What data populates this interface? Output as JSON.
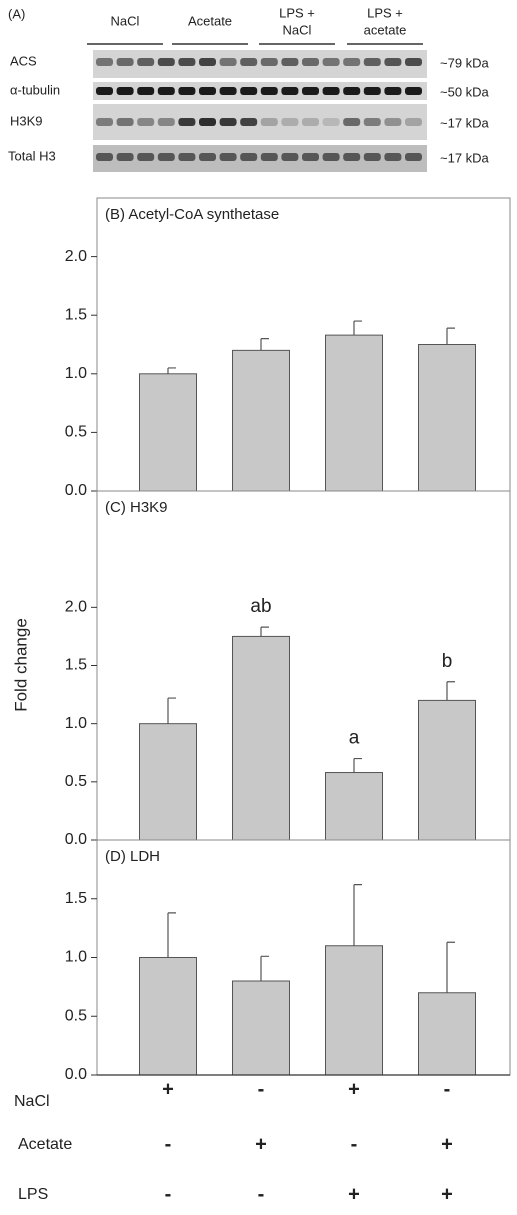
{
  "blot": {
    "panel_label": "(A)",
    "groups": [
      [
        "NaCl"
      ],
      [
        "Acetate"
      ],
      [
        "LPS +",
        "NaCl"
      ],
      [
        "LPS +",
        "acetate"
      ]
    ],
    "rows": [
      {
        "label": "ACS",
        "size": "~79 kDa"
      },
      {
        "label": "α-tubulin",
        "size": "~50 kDa"
      },
      {
        "label": "H3K9",
        "size": "~17 kDa"
      },
      {
        "label": "Total H3",
        "size": "~17 kDa"
      }
    ]
  },
  "y_axis_label": "Fold change",
  "chart_data": [
    {
      "type": "bar",
      "title": "(B) Acetyl-CoA synthetase",
      "color": "#c8c8c8",
      "categories": [
        null,
        null,
        null,
        null
      ],
      "values": [
        1.0,
        1.2,
        1.33,
        1.25
      ],
      "errors": [
        0.05,
        0.1,
        0.12,
        0.14
      ],
      "ylim": [
        0,
        2.5
      ],
      "yticks": [
        {
          "value": 0,
          "label": "0.0"
        },
        {
          "value": 0.5,
          "label": "0.5"
        },
        {
          "value": 1,
          "label": "1.0"
        },
        {
          "value": 1.5,
          "label": "1.5"
        },
        {
          "value": 2,
          "label": "2.0"
        }
      ]
    },
    {
      "type": "bar",
      "title": "(C) H3K9",
      "color": "#c8c8c8",
      "categories": [
        null,
        null,
        null,
        null
      ],
      "values": [
        1.0,
        1.75,
        0.58,
        1.2
      ],
      "errors": [
        0.22,
        0.08,
        0.12,
        0.16
      ],
      "bar_labels": [
        null,
        "ab",
        "a",
        "b"
      ],
      "ylim": [
        0,
        3.0
      ],
      "yticks": [
        {
          "value": 0,
          "label": "0.0"
        },
        {
          "value": 0.5,
          "label": "0.5"
        },
        {
          "value": 1,
          "label": "1.0"
        },
        {
          "value": 1.5,
          "label": "1.5"
        },
        {
          "value": 2,
          "label": "2.0"
        }
      ]
    },
    {
      "type": "bar",
      "title": "(D) LDH",
      "color": "#c8c8c8",
      "categories": [
        null,
        null,
        null,
        null
      ],
      "values": [
        1.0,
        0.8,
        1.1,
        0.7
      ],
      "errors": [
        0.38,
        0.21,
        0.52,
        0.43
      ],
      "ylim": [
        0,
        2.0
      ],
      "yticks": [
        {
          "value": 0,
          "label": "0.0"
        },
        {
          "value": 0.5,
          "label": "0.5"
        },
        {
          "value": 1,
          "label": "1.0"
        },
        {
          "value": 1.5,
          "label": "1.5"
        }
      ]
    }
  ],
  "treatment_table": {
    "rows": [
      {
        "label": "NaCl",
        "marks": [
          "+",
          "-",
          "+",
          "-"
        ]
      },
      {
        "label": "Acetate",
        "marks": [
          "-",
          "+",
          "-",
          "+"
        ]
      },
      {
        "label": "LPS",
        "marks": [
          "-",
          "-",
          "+",
          "+"
        ]
      }
    ]
  }
}
